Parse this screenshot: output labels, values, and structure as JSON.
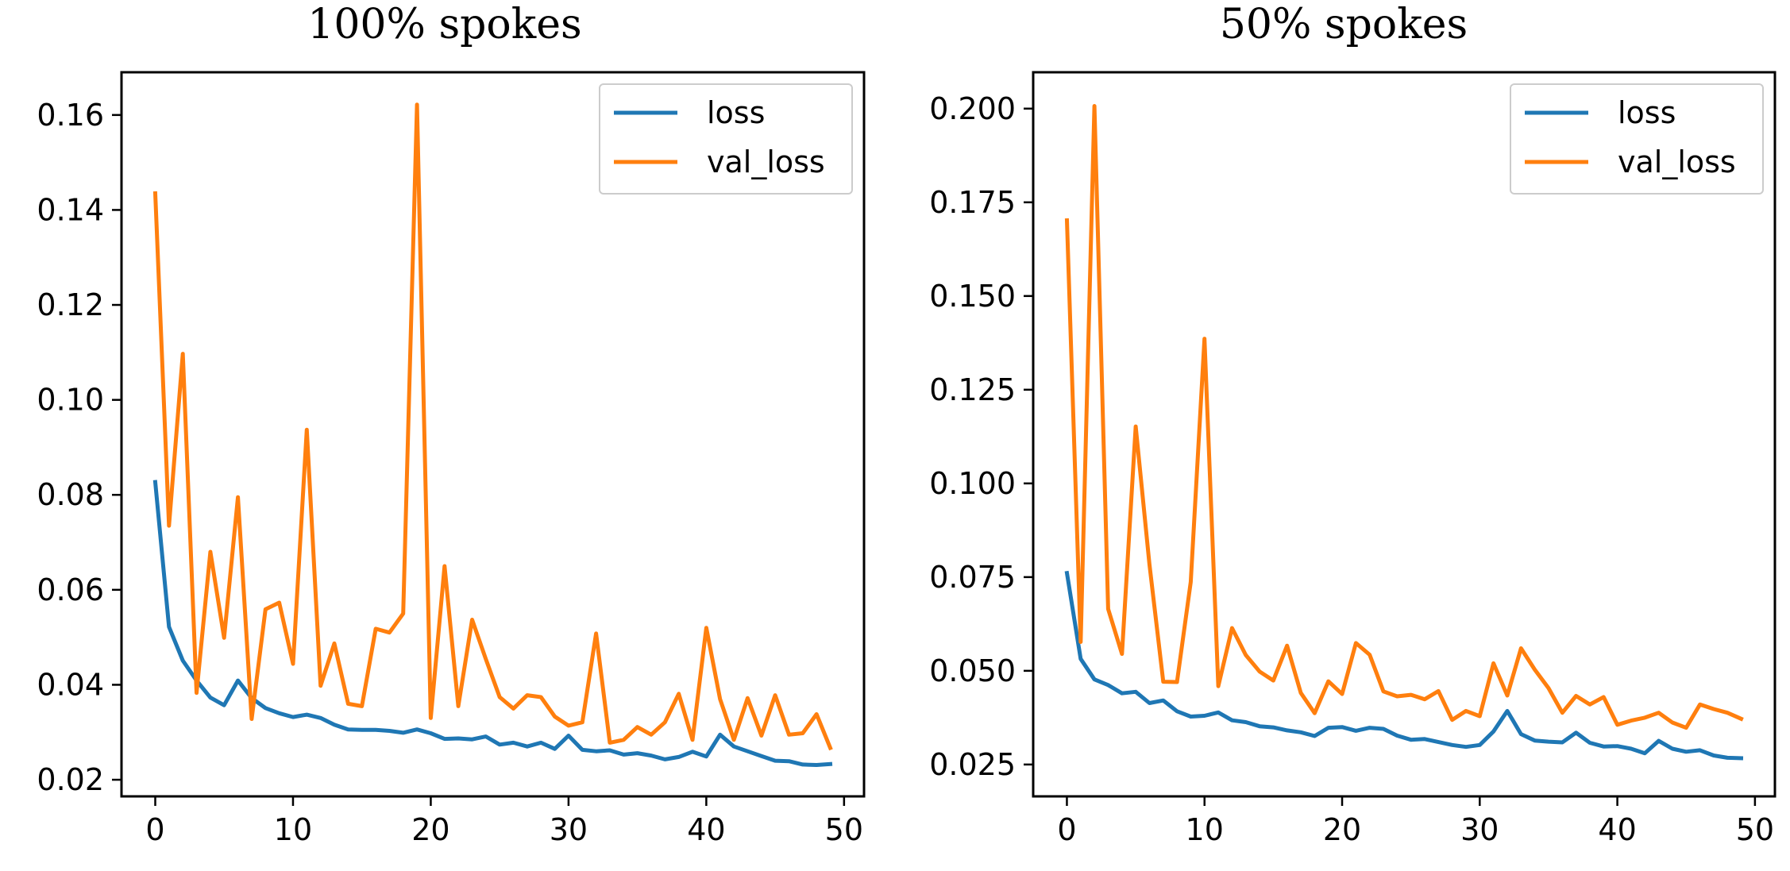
{
  "chart_data": [
    {
      "type": "line",
      "title": "100% spokes",
      "xlabel": "",
      "ylabel": "",
      "xlim": [
        -2.45,
        51.45
      ],
      "ylim": [
        0.0165,
        0.169
      ],
      "xticks": [
        0,
        10,
        20,
        30,
        40,
        50
      ],
      "xtick_labels": [
        "0",
        "10",
        "20",
        "30",
        "40",
        "50"
      ],
      "yticks": [
        0.02,
        0.04,
        0.06,
        0.08,
        0.1,
        0.12,
        0.14,
        0.16
      ],
      "ytick_labels": [
        "0.02",
        "0.04",
        "0.06",
        "0.08",
        "0.10",
        "0.12",
        "0.14",
        "0.16"
      ],
      "grid": false,
      "legend_position": "top-right",
      "x": [
        0,
        1,
        2,
        3,
        4,
        5,
        6,
        7,
        8,
        9,
        10,
        11,
        12,
        13,
        14,
        15,
        16,
        17,
        18,
        19,
        20,
        21,
        22,
        23,
        24,
        25,
        26,
        27,
        28,
        29,
        30,
        31,
        32,
        33,
        34,
        35,
        36,
        37,
        38,
        39,
        40,
        41,
        42,
        43,
        44,
        45,
        46,
        47,
        48,
        49
      ],
      "series": [
        {
          "name": "loss",
          "color": "#1f77b4",
          "values": [
            0.0827,
            0.0522,
            0.0451,
            0.0409,
            0.0373,
            0.0357,
            0.0409,
            0.0372,
            0.0351,
            0.034,
            0.0332,
            0.0337,
            0.033,
            0.0316,
            0.0306,
            0.0305,
            0.0305,
            0.0303,
            0.0299,
            0.0306,
            0.0298,
            0.0286,
            0.0287,
            0.0285,
            0.0291,
            0.0274,
            0.0278,
            0.027,
            0.0278,
            0.0265,
            0.0293,
            0.0263,
            0.026,
            0.0262,
            0.0253,
            0.0256,
            0.0251,
            0.0243,
            0.0248,
            0.0259,
            0.0249,
            0.0295,
            0.027,
            0.026,
            0.025,
            0.024,
            0.0239,
            0.0232,
            0.0231,
            0.0233
          ]
        },
        {
          "name": "val_loss",
          "color": "#ff7f0e",
          "values": [
            0.1435,
            0.0735,
            0.1097,
            0.0383,
            0.068,
            0.0499,
            0.0795,
            0.0328,
            0.0559,
            0.0573,
            0.0444,
            0.0937,
            0.0398,
            0.0487,
            0.036,
            0.0355,
            0.0518,
            0.051,
            0.055,
            0.1622,
            0.033,
            0.065,
            0.0355,
            0.0537,
            0.0454,
            0.0374,
            0.035,
            0.0378,
            0.0374,
            0.0333,
            0.0314,
            0.0321,
            0.0508,
            0.0278,
            0.0284,
            0.0311,
            0.0295,
            0.0321,
            0.0381,
            0.0284,
            0.052,
            0.037,
            0.0284,
            0.0372,
            0.0293,
            0.0378,
            0.0295,
            0.0298,
            0.0338,
            0.0267
          ]
        }
      ]
    },
    {
      "type": "line",
      "title": "50% spokes",
      "xlabel": "",
      "ylabel": "",
      "xlim": [
        -2.45,
        51.45
      ],
      "ylim": [
        0.0165,
        0.2097
      ],
      "xticks": [
        0,
        10,
        20,
        30,
        40,
        50
      ],
      "xtick_labels": [
        "0",
        "10",
        "20",
        "30",
        "40",
        "50"
      ],
      "yticks": [
        0.025,
        0.05,
        0.075,
        0.1,
        0.125,
        0.15,
        0.175,
        0.2
      ],
      "ytick_labels": [
        "0.025",
        "0.050",
        "0.075",
        "0.100",
        "0.125",
        "0.150",
        "0.175",
        "0.200"
      ],
      "grid": false,
      "legend_position": "top-right",
      "x": [
        0,
        1,
        2,
        3,
        4,
        5,
        6,
        7,
        8,
        9,
        10,
        11,
        12,
        13,
        14,
        15,
        16,
        17,
        18,
        19,
        20,
        21,
        22,
        23,
        24,
        25,
        26,
        27,
        28,
        29,
        30,
        31,
        32,
        33,
        34,
        35,
        36,
        37,
        38,
        39,
        40,
        41,
        42,
        43,
        44,
        45,
        46,
        47,
        48,
        49
      ],
      "series": [
        {
          "name": "loss",
          "color": "#1f77b4",
          "values": [
            0.0761,
            0.0532,
            0.0477,
            0.0462,
            0.044,
            0.0444,
            0.0414,
            0.0421,
            0.0392,
            0.0378,
            0.038,
            0.0389,
            0.0368,
            0.0363,
            0.0352,
            0.0349,
            0.0341,
            0.0336,
            0.0326,
            0.0348,
            0.035,
            0.034,
            0.0348,
            0.0345,
            0.0327,
            0.0316,
            0.0318,
            0.031,
            0.0302,
            0.0297,
            0.0302,
            0.0338,
            0.0393,
            0.0331,
            0.0314,
            0.0311,
            0.0309,
            0.0335,
            0.0308,
            0.0298,
            0.0299,
            0.0292,
            0.028,
            0.0313,
            0.0292,
            0.0284,
            0.0288,
            0.0274,
            0.0268,
            0.0267
          ]
        },
        {
          "name": "val_loss",
          "color": "#ff7f0e",
          "values": [
            0.1702,
            0.0577,
            0.2007,
            0.0665,
            0.0545,
            0.1152,
            0.0784,
            0.0471,
            0.047,
            0.0737,
            0.1386,
            0.0459,
            0.0614,
            0.0542,
            0.0498,
            0.0474,
            0.0567,
            0.0441,
            0.0387,
            0.0472,
            0.0438,
            0.0574,
            0.0543,
            0.0445,
            0.0432,
            0.0436,
            0.0424,
            0.0446,
            0.0369,
            0.0393,
            0.0379,
            0.052,
            0.0434,
            0.056,
            0.0503,
            0.0454,
            0.0388,
            0.0433,
            0.041,
            0.043,
            0.0356,
            0.0367,
            0.0375,
            0.0388,
            0.0362,
            0.0348,
            0.041,
            0.0398,
            0.0388,
            0.0372
          ]
        }
      ]
    }
  ]
}
